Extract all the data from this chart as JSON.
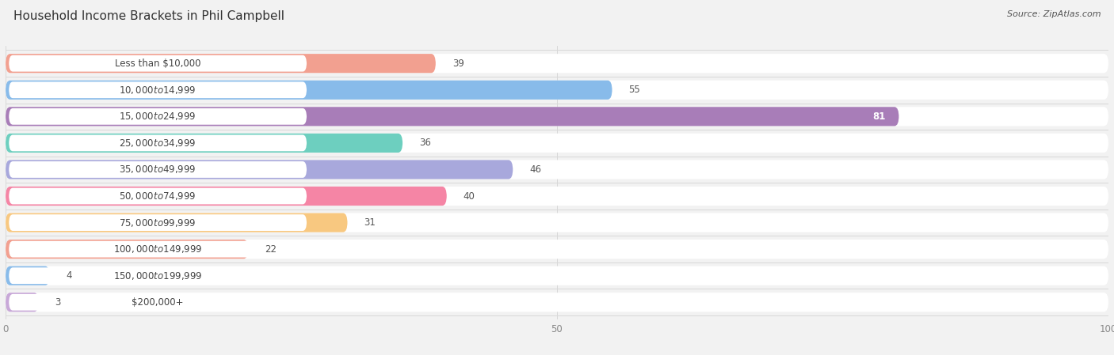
{
  "title": "Household Income Brackets in Phil Campbell",
  "source": "Source: ZipAtlas.com",
  "categories": [
    "Less than $10,000",
    "$10,000 to $14,999",
    "$15,000 to $24,999",
    "$25,000 to $34,999",
    "$35,000 to $49,999",
    "$50,000 to $74,999",
    "$75,000 to $99,999",
    "$100,000 to $149,999",
    "$150,000 to $199,999",
    "$200,000+"
  ],
  "values": [
    39,
    55,
    81,
    36,
    46,
    40,
    31,
    22,
    4,
    3
  ],
  "colors": [
    "#F2A090",
    "#88BBEA",
    "#A87DB8",
    "#6DCFBF",
    "#A8A8DC",
    "#F585A5",
    "#F8C880",
    "#F2A090",
    "#88BBEA",
    "#C8A8D8"
  ],
  "xlim": [
    0,
    100
  ],
  "xticks": [
    0,
    50,
    100
  ],
  "background_color": "#f2f2f2",
  "title_fontsize": 11,
  "source_fontsize": 8,
  "label_fontsize": 8.5,
  "value_fontsize": 8.5,
  "label_pill_color": "white",
  "label_text_color": "#444444",
  "value_text_color": "#555555",
  "value_inside_color": "white",
  "grid_color": "#d8d8d8"
}
